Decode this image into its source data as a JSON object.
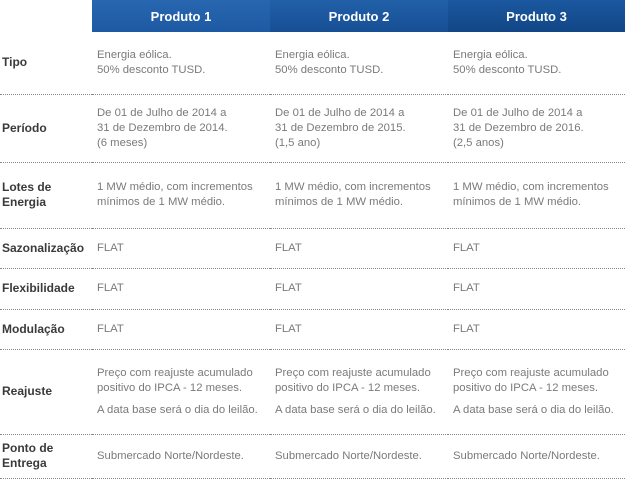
{
  "table": {
    "columns": [
      "Produto 1",
      "Produto 2",
      "Produto 3"
    ],
    "rows": [
      {
        "label": [
          "Tipo"
        ],
        "cells": [
          [
            [
              "Energia eólica.",
              "50% desconto TUSD."
            ]
          ],
          [
            [
              "Energia eólica.",
              "50% desconto TUSD."
            ]
          ],
          [
            [
              "Energia eólica.",
              "50% desconto TUSD."
            ]
          ]
        ]
      },
      {
        "label": [
          "Período"
        ],
        "cells": [
          [
            [
              "De 01 de Julho de 2014 a",
              "31 de Dezembro de 2014.",
              "(6 meses)"
            ]
          ],
          [
            [
              "De 01 de Julho de 2014 a",
              "31 de Dezembro de 2015.",
              "(1,5 ano)"
            ]
          ],
          [
            [
              "De 01 de Julho de 2014 a",
              "31 de Dezembro de 2016.",
              "(2,5 anos)"
            ]
          ]
        ]
      },
      {
        "label": [
          "Lotes de",
          "Energia"
        ],
        "cells": [
          [
            [
              "1 MW médio, com incrementos",
              "mínimos de 1 MW médio."
            ]
          ],
          [
            [
              "1 MW médio, com incrementos",
              "mínimos de 1 MW médio."
            ]
          ],
          [
            [
              "1 MW médio, com incrementos",
              "mínimos de 1 MW médio."
            ]
          ]
        ]
      },
      {
        "label": [
          "Sazonalização"
        ],
        "cells": [
          [
            [
              "FLAT"
            ]
          ],
          [
            [
              "FLAT"
            ]
          ],
          [
            [
              "FLAT"
            ]
          ]
        ]
      },
      {
        "label": [
          "Flexibilidade"
        ],
        "cells": [
          [
            [
              "FLAT"
            ]
          ],
          [
            [
              "FLAT"
            ]
          ],
          [
            [
              "FLAT"
            ]
          ]
        ]
      },
      {
        "label": [
          "Modulação"
        ],
        "cells": [
          [
            [
              "FLAT"
            ]
          ],
          [
            [
              "FLAT"
            ]
          ],
          [
            [
              "FLAT"
            ]
          ]
        ]
      },
      {
        "label": [
          "Reajuste"
        ],
        "cells": [
          [
            [
              "Preço com reajuste acumulado",
              "positivo do IPCA - 12 meses."
            ],
            [
              "A data base será o dia do leilão."
            ]
          ],
          [
            [
              "Preço com reajuste acumulado",
              "positivo do IPCA - 12 meses."
            ],
            [
              "A data base será o dia do leilão."
            ]
          ],
          [
            [
              "Preço com reajuste acumulado",
              "positivo do IPCA - 12 meses."
            ],
            [
              "A data base será o dia do leilão."
            ]
          ]
        ]
      },
      {
        "label": [
          "Ponto de",
          "Entrega"
        ],
        "cells": [
          [
            [
              "Submercado Norte/Nordeste."
            ]
          ],
          [
            [
              "Submercado Norte/Nordeste."
            ]
          ],
          [
            [
              "Submercado Norte/Nordeste."
            ]
          ]
        ]
      }
    ]
  }
}
